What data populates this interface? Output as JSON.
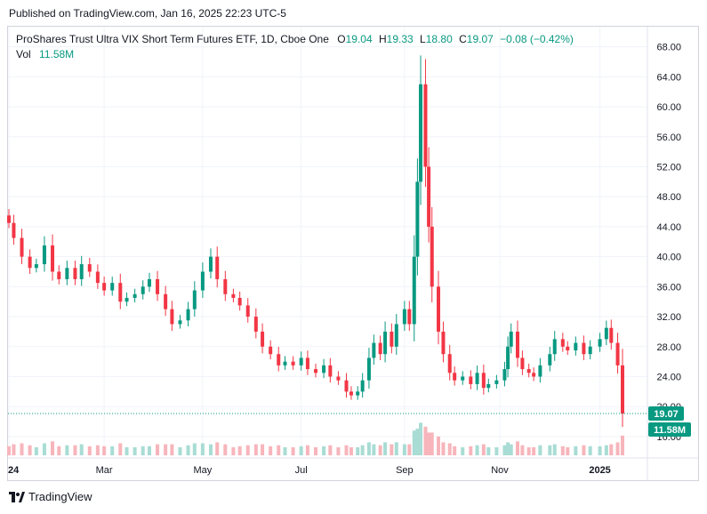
{
  "published": "Published on TradingView.com, Jan 16, 2025 22:23 UTC-5",
  "legend": {
    "title": "ProShares Trust Ultra VIX Short Term Futures ETF, 1D, Cboe One",
    "o_label": "O",
    "o_value": "19.04",
    "h_label": "H",
    "h_value": "19.33",
    "l_label": "L",
    "l_value": "18.80",
    "c_label": "C",
    "c_value": "19.07",
    "change": "−0.08 (−0.42%)",
    "vol_label": "Vol",
    "vol_value": "11.58M"
  },
  "footer": {
    "brand": "TradingView"
  },
  "colors": {
    "up": "#089981",
    "down": "#f23645",
    "up_vol": "#a8dcd4",
    "down_vol": "#f7b5bb",
    "grid": "#f0f3fa",
    "axis_text": "#131722"
  },
  "chart_data": {
    "type": "candlestick",
    "title": "ProShares Trust Ultra VIX Short Term Futures ETF",
    "interval": "1D",
    "exchange": "Cboe One",
    "y_axis_ticks": [
      16,
      20,
      24,
      28,
      32,
      36,
      40,
      44,
      48,
      52,
      56,
      60,
      64,
      68
    ],
    "y_tick_labels": [
      "16.00",
      "20.00",
      "24.00",
      "28.00",
      "32.00",
      "36.00",
      "40.00",
      "44.00",
      "48.00",
      "52.00",
      "56.00",
      "60.00",
      "64.00",
      "68.00"
    ],
    "ylim": [
      13.5,
      69.5
    ],
    "x_axis_ticks": [
      {
        "label": "24",
        "date": "2024-01-02",
        "bold": true
      },
      {
        "label": "Mar",
        "date": "2024-03-01",
        "bold": false
      },
      {
        "label": "May",
        "date": "2024-05-01",
        "bold": false
      },
      {
        "label": "Jul",
        "date": "2024-07-01",
        "bold": false
      },
      {
        "label": "Sep",
        "date": "2024-09-03",
        "bold": false
      },
      {
        "label": "Nov",
        "date": "2024-11-01",
        "bold": false
      },
      {
        "label": "2025",
        "date": "2025-01-02",
        "bold": true
      }
    ],
    "x_range": [
      "2024-01-02",
      "2025-01-16"
    ],
    "close_series": [
      [
        "2024-01-02",
        44.5
      ],
      [
        "2024-01-05",
        42.5
      ],
      [
        "2024-01-10",
        40.0
      ],
      [
        "2024-01-15",
        38.5
      ],
      [
        "2024-01-19",
        39.0
      ],
      [
        "2024-01-24",
        41.5
      ],
      [
        "2024-01-29",
        38.0
      ],
      [
        "2024-02-02",
        37.0
      ],
      [
        "2024-02-07",
        38.5
      ],
      [
        "2024-02-12",
        37.0
      ],
      [
        "2024-02-16",
        39.0
      ],
      [
        "2024-02-21",
        38.0
      ],
      [
        "2024-02-26",
        36.5
      ],
      [
        "2024-03-01",
        35.5
      ],
      [
        "2024-03-06",
        36.5
      ],
      [
        "2024-03-11",
        34.0
      ],
      [
        "2024-03-15",
        34.5
      ],
      [
        "2024-03-20",
        35.0
      ],
      [
        "2024-03-25",
        36.0
      ],
      [
        "2024-03-29",
        37.0
      ],
      [
        "2024-04-03",
        35.0
      ],
      [
        "2024-04-08",
        33.0
      ],
      [
        "2024-04-12",
        31.0
      ],
      [
        "2024-04-17",
        31.5
      ],
      [
        "2024-04-22",
        33.0
      ],
      [
        "2024-04-26",
        35.5
      ],
      [
        "2024-05-01",
        38.0
      ],
      [
        "2024-05-06",
        40.0
      ],
      [
        "2024-05-10",
        37.0
      ],
      [
        "2024-05-15",
        35.0
      ],
      [
        "2024-05-20",
        34.5
      ],
      [
        "2024-05-24",
        33.5
      ],
      [
        "2024-05-29",
        32.0
      ],
      [
        "2024-06-03",
        30.0
      ],
      [
        "2024-06-07",
        28.0
      ],
      [
        "2024-06-12",
        27.0
      ],
      [
        "2024-06-17",
        25.5
      ],
      [
        "2024-06-21",
        26.0
      ],
      [
        "2024-06-26",
        25.5
      ],
      [
        "2024-07-01",
        26.5
      ],
      [
        "2024-07-05",
        25.0
      ],
      [
        "2024-07-10",
        24.5
      ],
      [
        "2024-07-15",
        25.5
      ],
      [
        "2024-07-19",
        24.0
      ],
      [
        "2024-07-24",
        23.5
      ],
      [
        "2024-07-29",
        22.0
      ],
      [
        "2024-08-01",
        21.5
      ],
      [
        "2024-08-05",
        22.0
      ],
      [
        "2024-08-08",
        23.5
      ],
      [
        "2024-08-12",
        26.5
      ],
      [
        "2024-08-15",
        28.5
      ],
      [
        "2024-08-19",
        27.0
      ],
      [
        "2024-08-22",
        30.0
      ],
      [
        "2024-08-26",
        28.0
      ],
      [
        "2024-08-29",
        31.0
      ],
      [
        "2024-09-03",
        33.0
      ],
      [
        "2024-09-06",
        31.0
      ],
      [
        "2024-09-09",
        40.0
      ],
      [
        "2024-09-11",
        50.0
      ],
      [
        "2024-09-13",
        63.0
      ],
      [
        "2024-09-16",
        52.0
      ],
      [
        "2024-09-18",
        44.0
      ],
      [
        "2024-09-20",
        36.0
      ],
      [
        "2024-09-24",
        30.0
      ],
      [
        "2024-09-27",
        27.0
      ],
      [
        "2024-10-01",
        24.5
      ],
      [
        "2024-10-04",
        23.5
      ],
      [
        "2024-10-09",
        24.0
      ],
      [
        "2024-10-14",
        23.0
      ],
      [
        "2024-10-18",
        24.5
      ],
      [
        "2024-10-22",
        22.5
      ],
      [
        "2024-10-25",
        23.0
      ],
      [
        "2024-10-30",
        23.5
      ],
      [
        "2024-11-04",
        25.0
      ],
      [
        "2024-11-06",
        28.0
      ],
      [
        "2024-11-08",
        30.0
      ],
      [
        "2024-11-12",
        26.5
      ],
      [
        "2024-11-15",
        25.0
      ],
      [
        "2024-11-19",
        24.5
      ],
      [
        "2024-11-22",
        24.0
      ],
      [
        "2024-11-26",
        25.5
      ],
      [
        "2024-12-02",
        27.0
      ],
      [
        "2024-12-05",
        29.0
      ],
      [
        "2024-12-10",
        28.0
      ],
      [
        "2024-12-13",
        27.5
      ],
      [
        "2024-12-18",
        28.5
      ],
      [
        "2024-12-23",
        27.0
      ],
      [
        "2024-12-27",
        28.0
      ],
      [
        "2025-01-02",
        29.0
      ],
      [
        "2025-01-06",
        30.5
      ],
      [
        "2025-01-09",
        28.5
      ],
      [
        "2025-01-13",
        25.5
      ],
      [
        "2025-01-16",
        19.07
      ]
    ],
    "last_price": 19.07,
    "last_volume": "11.58M"
  },
  "price_label": "19.07",
  "vol_badge": "11.58M"
}
